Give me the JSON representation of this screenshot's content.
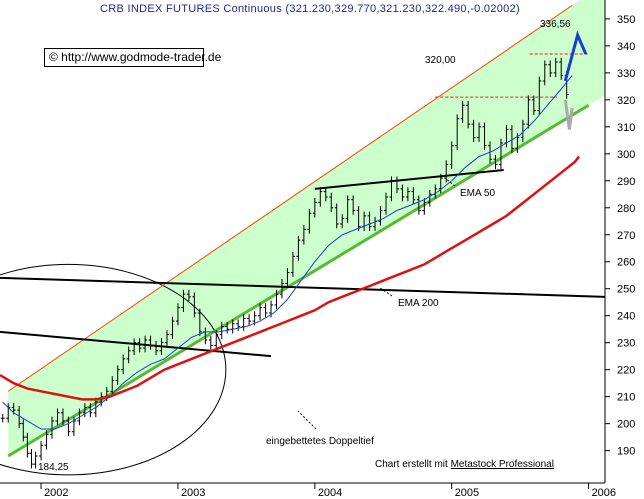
{
  "title": "CRB INDEX FUTURES Continuous (321.230,329.770,321.230,322.490,-0.02002)",
  "credit": "© http://www.godmode-trader.de",
  "footer": {
    "prefix": "Chart erstellt mit ",
    "software": "Metastock Professional"
  },
  "chart_data": {
    "type": "line",
    "instrument": "CRB INDEX FUTURES Continuous",
    "ohlc_last": {
      "open": 321.23,
      "high": 329.77,
      "low": 321.23,
      "close": 322.49,
      "change": -0.02002
    },
    "y_axis": {
      "position": "right",
      "ylim": [
        178,
        357
      ],
      "ticks": [
        190,
        200,
        210,
        220,
        230,
        240,
        250,
        260,
        270,
        280,
        290,
        300,
        310,
        320,
        330,
        340,
        350
      ]
    },
    "x_axis": {
      "xlim": [
        2001.7,
        2006.12
      ],
      "ticks": [
        "2002",
        "2003",
        "2004",
        "2005",
        "2006"
      ]
    },
    "annotations": {
      "low_label": "184,25",
      "level_320": "320,00",
      "level_336": "336,56",
      "ema50_label": "EMA 50",
      "ema200_label": "EMA 200",
      "pattern_label": "eingebettetes Doppeltief"
    },
    "series": [
      {
        "style": "bar",
        "color": "#000000",
        "points": [
          [
            2001.72,
            202
          ],
          [
            2001.76,
            206
          ],
          [
            2001.8,
            205
          ],
          [
            2001.84,
            200
          ],
          [
            2001.87,
            195
          ],
          [
            2001.9,
            189
          ],
          [
            2001.93,
            185
          ],
          [
            2001.96,
            188
          ],
          [
            2002.0,
            192
          ],
          [
            2002.04,
            196
          ],
          [
            2002.08,
            201
          ],
          [
            2002.12,
            204
          ],
          [
            2002.16,
            201
          ],
          [
            2002.2,
            197
          ],
          [
            2002.24,
            201
          ],
          [
            2002.28,
            204
          ],
          [
            2002.32,
            206
          ],
          [
            2002.36,
            204
          ],
          [
            2002.4,
            208
          ],
          [
            2002.44,
            210
          ],
          [
            2002.48,
            212
          ],
          [
            2002.52,
            216
          ],
          [
            2002.56,
            220
          ],
          [
            2002.6,
            224
          ],
          [
            2002.64,
            227
          ],
          [
            2002.68,
            230
          ],
          [
            2002.72,
            228
          ],
          [
            2002.76,
            231
          ],
          [
            2002.8,
            229
          ],
          [
            2002.84,
            227
          ],
          [
            2002.88,
            230
          ],
          [
            2002.92,
            233
          ],
          [
            2002.96,
            238
          ],
          [
            2003.0,
            243
          ],
          [
            2003.04,
            248
          ],
          [
            2003.08,
            247
          ],
          [
            2003.12,
            241
          ],
          [
            2003.16,
            234
          ],
          [
            2003.2,
            231
          ],
          [
            2003.24,
            229
          ],
          [
            2003.28,
            233
          ],
          [
            2003.32,
            236
          ],
          [
            2003.36,
            235
          ],
          [
            2003.4,
            237
          ],
          [
            2003.44,
            236
          ],
          [
            2003.48,
            239
          ],
          [
            2003.52,
            238
          ],
          [
            2003.56,
            240
          ],
          [
            2003.6,
            243
          ],
          [
            2003.64,
            241
          ],
          [
            2003.68,
            244
          ],
          [
            2003.72,
            248
          ],
          [
            2003.76,
            252
          ],
          [
            2003.8,
            256
          ],
          [
            2003.84,
            262
          ],
          [
            2003.88,
            268
          ],
          [
            2003.92,
            272
          ],
          [
            2003.96,
            278
          ],
          [
            2004.0,
            282
          ],
          [
            2004.04,
            286
          ],
          [
            2004.08,
            284
          ],
          [
            2004.12,
            280
          ],
          [
            2004.16,
            274
          ],
          [
            2004.2,
            276
          ],
          [
            2004.24,
            283
          ],
          [
            2004.28,
            279
          ],
          [
            2004.32,
            273
          ],
          [
            2004.36,
            277
          ],
          [
            2004.4,
            273
          ],
          [
            2004.44,
            275
          ],
          [
            2004.48,
            279
          ],
          [
            2004.52,
            284
          ],
          [
            2004.56,
            290
          ],
          [
            2004.6,
            287
          ],
          [
            2004.64,
            284
          ],
          [
            2004.68,
            286
          ],
          [
            2004.72,
            283
          ],
          [
            2004.76,
            279
          ],
          [
            2004.8,
            282
          ],
          [
            2004.84,
            285
          ],
          [
            2004.88,
            287
          ],
          [
            2004.92,
            291
          ],
          [
            2004.96,
            296
          ],
          [
            2005.0,
            303
          ],
          [
            2005.04,
            313
          ],
          [
            2005.08,
            318
          ],
          [
            2005.12,
            311
          ],
          [
            2005.16,
            306
          ],
          [
            2005.2,
            310
          ],
          [
            2005.24,
            303
          ],
          [
            2005.28,
            298
          ],
          [
            2005.32,
            296
          ],
          [
            2005.36,
            304
          ],
          [
            2005.4,
            309
          ],
          [
            2005.44,
            302
          ],
          [
            2005.48,
            306
          ],
          [
            2005.52,
            311
          ],
          [
            2005.56,
            320
          ],
          [
            2005.6,
            316
          ],
          [
            2005.64,
            327
          ],
          [
            2005.68,
            333
          ],
          [
            2005.72,
            330
          ],
          [
            2005.76,
            334
          ],
          [
            2005.8,
            329
          ],
          [
            2005.84,
            322
          ]
        ]
      },
      {
        "name": "EMA 50",
        "color": "#1a3fd0",
        "points": [
          [
            2001.72,
            208
          ],
          [
            2001.8,
            204
          ],
          [
            2001.9,
            201
          ],
          [
            2002.0,
            198
          ],
          [
            2002.1,
            198
          ],
          [
            2002.2,
            200
          ],
          [
            2002.3,
            203
          ],
          [
            2002.4,
            206
          ],
          [
            2002.5,
            210
          ],
          [
            2002.6,
            215
          ],
          [
            2002.7,
            219
          ],
          [
            2002.8,
            222
          ],
          [
            2002.9,
            224
          ],
          [
            2003.0,
            228
          ],
          [
            2003.1,
            232
          ],
          [
            2003.2,
            234
          ],
          [
            2003.3,
            234
          ],
          [
            2003.4,
            235
          ],
          [
            2003.5,
            236
          ],
          [
            2003.6,
            238
          ],
          [
            2003.7,
            241
          ],
          [
            2003.8,
            246
          ],
          [
            2003.9,
            253
          ],
          [
            2004.0,
            260
          ],
          [
            2004.1,
            266
          ],
          [
            2004.2,
            270
          ],
          [
            2004.3,
            272
          ],
          [
            2004.4,
            274
          ],
          [
            2004.5,
            276
          ],
          [
            2004.6,
            279
          ],
          [
            2004.7,
            281
          ],
          [
            2004.8,
            283
          ],
          [
            2004.9,
            286
          ],
          [
            2005.0,
            290
          ],
          [
            2005.1,
            295
          ],
          [
            2005.2,
            299
          ],
          [
            2005.3,
            301
          ],
          [
            2005.4,
            304
          ],
          [
            2005.5,
            307
          ],
          [
            2005.6,
            312
          ],
          [
            2005.7,
            318
          ],
          [
            2005.8,
            324
          ],
          [
            2005.88,
            329
          ]
        ]
      },
      {
        "name": "EMA 200",
        "color": "#dd1111",
        "points": [
          [
            2001.7,
            218
          ],
          [
            2001.8,
            215
          ],
          [
            2001.9,
            213
          ],
          [
            2002.0,
            212
          ],
          [
            2002.1,
            211
          ],
          [
            2002.2,
            210
          ],
          [
            2002.3,
            209
          ],
          [
            2002.4,
            209
          ],
          [
            2002.5,
            210
          ],
          [
            2002.6,
            212
          ],
          [
            2002.7,
            214
          ],
          [
            2002.8,
            217
          ],
          [
            2002.9,
            220
          ],
          [
            2003.0,
            222
          ],
          [
            2003.1,
            224
          ],
          [
            2003.2,
            226
          ],
          [
            2003.3,
            228
          ],
          [
            2003.4,
            230
          ],
          [
            2003.5,
            232
          ],
          [
            2003.6,
            234
          ],
          [
            2003.7,
            236
          ],
          [
            2003.8,
            238
          ],
          [
            2003.9,
            240
          ],
          [
            2004.0,
            242
          ],
          [
            2004.1,
            245
          ],
          [
            2004.2,
            247
          ],
          [
            2004.3,
            249
          ],
          [
            2004.4,
            251
          ],
          [
            2004.5,
            253
          ],
          [
            2004.6,
            255
          ],
          [
            2004.7,
            257
          ],
          [
            2004.8,
            259
          ],
          [
            2004.9,
            262
          ],
          [
            2005.0,
            265
          ],
          [
            2005.1,
            268
          ],
          [
            2005.2,
            271
          ],
          [
            2005.3,
            274
          ],
          [
            2005.4,
            277
          ],
          [
            2005.5,
            281
          ],
          [
            2005.6,
            285
          ],
          [
            2005.7,
            289
          ],
          [
            2005.8,
            293
          ],
          [
            2005.9,
            297
          ],
          [
            2005.93,
            299
          ]
        ]
      }
    ],
    "lines": [
      {
        "role": "channel-top",
        "color": "#ff4400",
        "from": [
          2001.76,
          212
        ],
        "to": [
          2005.88,
          355
        ]
      },
      {
        "role": "channel-bottom",
        "color": "#55bb33",
        "from": [
          2001.76,
          188
        ],
        "to": [
          2006.0,
          318
        ]
      },
      {
        "role": "long-support",
        "color": "#000000",
        "from": [
          2001.7,
          254
        ],
        "to": [
          2006.12,
          247
        ]
      },
      {
        "role": "descending-line",
        "color": "#000000",
        "from": [
          2001.7,
          234
        ],
        "to": [
          2003.68,
          225
        ]
      },
      {
        "role": "neckline",
        "color": "#000000",
        "from": [
          2004.0,
          287
        ],
        "to": [
          2005.38,
          294
        ]
      },
      {
        "role": "level-320",
        "color": "#dd2222",
        "dashed": true,
        "from": [
          2004.88,
          321
        ],
        "to": [
          2005.77,
          321
        ]
      },
      {
        "role": "level-336",
        "color": "#dd2222",
        "dashed": true,
        "from": [
          2005.57,
          337
        ],
        "to": [
          2006.0,
          337
        ]
      }
    ],
    "projections": [
      {
        "color": "#1a3fd0",
        "points": [
          [
            2005.83,
            327
          ],
          [
            2005.92,
            344
          ],
          [
            2005.98,
            337
          ]
        ]
      },
      {
        "color": "#aaaaaa",
        "points": [
          [
            2005.83,
            320
          ],
          [
            2005.86,
            309
          ],
          [
            2005.88,
            317
          ]
        ]
      }
    ],
    "arcs": [
      {
        "role": "double-bottom-pattern",
        "color": "#000000",
        "center": [
          2002.2,
          220
        ],
        "rx": 1.15,
        "ry": 39
      }
    ],
    "channel_fill": "#ccffcc"
  }
}
